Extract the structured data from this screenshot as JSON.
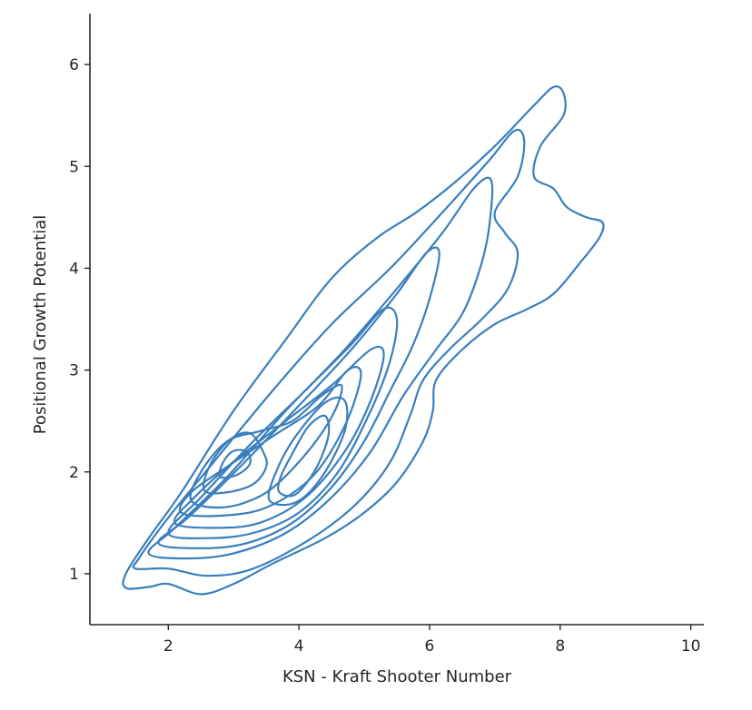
{
  "chart_data": {
    "type": "contour",
    "kind": "kde",
    "xlabel": "KSN - Kraft Shooter Number",
    "ylabel": "Positional Growth Potential",
    "xlim": [
      0.8,
      10.2
    ],
    "ylim": [
      0.5,
      6.5
    ],
    "xticks": [
      2,
      4,
      6,
      8,
      10
    ],
    "yticks": [
      1,
      2,
      3,
      4,
      5,
      6
    ],
    "grid": false,
    "line_color": "#3a7fbd",
    "levels": [
      {
        "level": 1,
        "contour": [
          [
            1.35,
            0.86
          ],
          [
            1.7,
            0.87
          ],
          [
            2.0,
            0.9
          ],
          [
            2.5,
            0.8
          ],
          [
            3.0,
            0.9
          ],
          [
            3.6,
            1.1
          ],
          [
            4.4,
            1.35
          ],
          [
            5.0,
            1.6
          ],
          [
            5.5,
            1.9
          ],
          [
            5.9,
            2.3
          ],
          [
            6.05,
            2.6
          ],
          [
            6.1,
            2.9
          ],
          [
            6.5,
            3.2
          ],
          [
            7.0,
            3.45
          ],
          [
            7.5,
            3.6
          ],
          [
            7.9,
            3.75
          ],
          [
            8.3,
            4.05
          ],
          [
            8.6,
            4.3
          ],
          [
            8.65,
            4.45
          ],
          [
            8.4,
            4.5
          ],
          [
            8.1,
            4.6
          ],
          [
            7.9,
            4.78
          ],
          [
            7.6,
            4.9
          ],
          [
            7.7,
            5.2
          ],
          [
            8.05,
            5.5
          ],
          [
            8.05,
            5.72
          ],
          [
            7.9,
            5.78
          ],
          [
            7.6,
            5.6
          ],
          [
            7.0,
            5.2
          ],
          [
            6.4,
            4.85
          ],
          [
            5.8,
            4.55
          ],
          [
            5.2,
            4.3
          ],
          [
            4.5,
            3.9
          ],
          [
            3.8,
            3.3
          ],
          [
            3.0,
            2.6
          ],
          [
            2.2,
            1.8
          ],
          [
            1.7,
            1.35
          ],
          [
            1.35,
            1.0
          ]
        ]
      },
      {
        "level": 2,
        "contour": [
          [
            1.5,
            1.05
          ],
          [
            2.0,
            1.05
          ],
          [
            2.6,
            0.98
          ],
          [
            3.3,
            1.05
          ],
          [
            4.2,
            1.35
          ],
          [
            4.9,
            1.7
          ],
          [
            5.4,
            2.1
          ],
          [
            5.7,
            2.55
          ],
          [
            5.9,
            2.9
          ],
          [
            6.3,
            3.2
          ],
          [
            6.8,
            3.5
          ],
          [
            7.2,
            3.8
          ],
          [
            7.35,
            4.15
          ],
          [
            7.15,
            4.35
          ],
          [
            7.0,
            4.55
          ],
          [
            7.35,
            4.9
          ],
          [
            7.45,
            5.25
          ],
          [
            7.3,
            5.35
          ],
          [
            6.9,
            5.05
          ],
          [
            6.2,
            4.55
          ],
          [
            5.4,
            4.0
          ],
          [
            4.5,
            3.45
          ],
          [
            3.6,
            2.8
          ],
          [
            2.7,
            2.1
          ],
          [
            2.0,
            1.55
          ],
          [
            1.55,
            1.15
          ]
        ]
      },
      {
        "level": 3,
        "contour": [
          [
            1.7,
            1.2
          ],
          [
            2.3,
            1.15
          ],
          [
            3.0,
            1.2
          ],
          [
            3.8,
            1.4
          ],
          [
            4.5,
            1.75
          ],
          [
            5.1,
            2.2
          ],
          [
            5.6,
            2.75
          ],
          [
            6.1,
            3.2
          ],
          [
            6.5,
            3.55
          ],
          [
            6.75,
            3.95
          ],
          [
            6.9,
            4.35
          ],
          [
            6.95,
            4.85
          ],
          [
            6.7,
            4.8
          ],
          [
            6.2,
            4.35
          ],
          [
            5.5,
            3.8
          ],
          [
            4.7,
            3.2
          ],
          [
            3.8,
            2.6
          ],
          [
            2.9,
            1.95
          ],
          [
            2.1,
            1.45
          ]
        ]
      },
      {
        "level": 4,
        "contour": [
          [
            1.85,
            1.3
          ],
          [
            2.5,
            1.25
          ],
          [
            3.2,
            1.3
          ],
          [
            3.9,
            1.5
          ],
          [
            4.5,
            1.85
          ],
          [
            5.0,
            2.3
          ],
          [
            5.4,
            2.8
          ],
          [
            5.75,
            3.25
          ],
          [
            6.0,
            3.7
          ],
          [
            6.15,
            4.15
          ],
          [
            5.95,
            4.15
          ],
          [
            5.5,
            3.75
          ],
          [
            4.8,
            3.2
          ],
          [
            4.0,
            2.65
          ],
          [
            3.1,
            2.05
          ],
          [
            2.3,
            1.55
          ]
        ]
      },
      {
        "level": 5,
        "contour": [
          [
            2.0,
            1.4
          ],
          [
            2.6,
            1.35
          ],
          [
            3.3,
            1.4
          ],
          [
            4.0,
            1.6
          ],
          [
            4.6,
            2.0
          ],
          [
            5.1,
            2.6
          ],
          [
            5.4,
            3.1
          ],
          [
            5.5,
            3.5
          ],
          [
            5.3,
            3.6
          ],
          [
            4.8,
            3.25
          ],
          [
            4.1,
            2.8
          ],
          [
            3.3,
            2.3
          ],
          [
            2.5,
            1.75
          ]
        ]
      },
      {
        "level": 6,
        "contour": [
          [
            2.1,
            1.5
          ],
          [
            2.7,
            1.45
          ],
          [
            3.4,
            1.5
          ],
          [
            4.1,
            1.75
          ],
          [
            4.7,
            2.2
          ],
          [
            5.1,
            2.7
          ],
          [
            5.3,
            3.15
          ],
          [
            5.1,
            3.2
          ],
          [
            4.5,
            2.85
          ],
          [
            3.8,
            2.5
          ],
          [
            3.0,
            2.1
          ],
          [
            2.4,
            1.75
          ]
        ]
      },
      {
        "level": 7,
        "contour": [
          [
            2.2,
            1.6
          ],
          [
            2.8,
            1.57
          ],
          [
            3.5,
            1.65
          ],
          [
            4.2,
            1.95
          ],
          [
            4.7,
            2.45
          ],
          [
            4.95,
            2.95
          ],
          [
            4.75,
            3.0
          ],
          [
            4.3,
            2.65
          ],
          [
            3.6,
            2.35
          ],
          [
            2.9,
            2.05
          ],
          [
            2.35,
            1.8
          ]
        ]
      },
      {
        "level": 8,
        "contour": [
          [
            2.35,
            1.72
          ],
          [
            2.8,
            1.65
          ],
          [
            3.3,
            1.73
          ],
          [
            3.7,
            1.9
          ],
          [
            4.2,
            2.25
          ],
          [
            4.55,
            2.6
          ],
          [
            4.65,
            2.85
          ],
          [
            4.35,
            2.75
          ],
          [
            3.9,
            2.5
          ],
          [
            3.4,
            2.4
          ],
          [
            2.9,
            2.3
          ],
          [
            2.5,
            2.0
          ]
        ]
      },
      {
        "level": 9,
        "contour": [
          [
            2.55,
            1.82
          ],
          [
            2.9,
            1.8
          ],
          [
            3.3,
            1.88
          ],
          [
            3.5,
            2.05
          ],
          [
            3.45,
            2.2
          ],
          [
            3.25,
            2.38
          ],
          [
            2.95,
            2.32
          ],
          [
            2.65,
            2.08
          ]
        ]
      },
      {
        "level": 9,
        "contour": [
          [
            3.55,
            1.72
          ],
          [
            3.95,
            1.7
          ],
          [
            4.35,
            1.95
          ],
          [
            4.7,
            2.4
          ],
          [
            4.7,
            2.7
          ],
          [
            4.4,
            2.68
          ],
          [
            3.95,
            2.35
          ],
          [
            3.65,
            2.0
          ]
        ]
      },
      {
        "level": 10,
        "contour": [
          [
            2.8,
            1.95
          ],
          [
            3.05,
            1.97
          ],
          [
            3.25,
            2.08
          ],
          [
            3.2,
            2.2
          ],
          [
            2.98,
            2.2
          ],
          [
            2.82,
            2.07
          ]
        ]
      },
      {
        "level": 10,
        "contour": [
          [
            3.7,
            1.8
          ],
          [
            3.95,
            1.78
          ],
          [
            4.25,
            2.02
          ],
          [
            4.45,
            2.35
          ],
          [
            4.4,
            2.55
          ],
          [
            4.15,
            2.45
          ],
          [
            3.9,
            2.18
          ],
          [
            3.72,
            1.95
          ]
        ]
      }
    ]
  }
}
